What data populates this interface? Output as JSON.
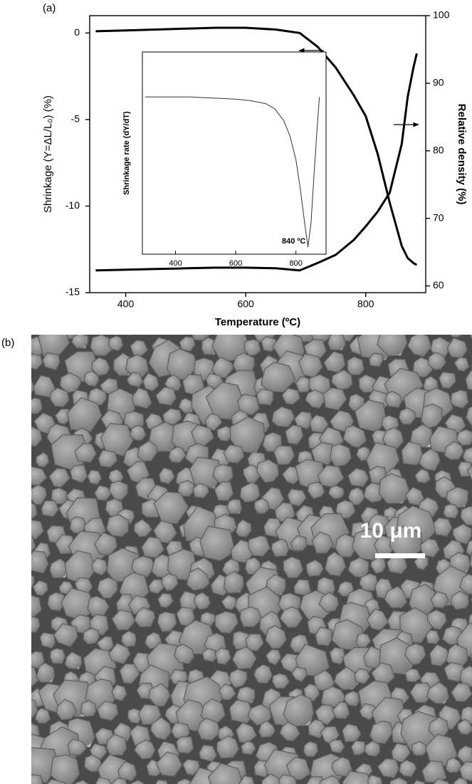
{
  "chart_data": [
    {
      "type": "line",
      "panel_label": "(a)",
      "xlabel": "Temperature (ºC)",
      "ylabel": "Shrinkage (Y=ΔL/L₀) (%)",
      "y2label": "Relative density (%)",
      "x": [
        350,
        400,
        450,
        500,
        550,
        600,
        650,
        690,
        720,
        750,
        780,
        800,
        820,
        840,
        860,
        870,
        880,
        885
      ],
      "xlim": [
        340,
        900
      ],
      "xticks": [
        400,
        600,
        800
      ],
      "ylim": [
        -15,
        1
      ],
      "yticks": [
        -15,
        -10,
        -5,
        0
      ],
      "y2lim": [
        59,
        100
      ],
      "y2ticks": [
        60,
        70,
        80,
        90,
        100
      ],
      "series": [
        {
          "color": "#000000",
          "values": [
            0.1,
            0.15,
            0.2,
            0.25,
            0.3,
            0.3,
            0.2,
            0,
            -0.8,
            -2,
            -3.6,
            -4.8,
            -7,
            -9.8,
            -12.3,
            -13,
            -13.3,
            -13.4
          ]
        },
        {
          "color": "#000000",
          "axis": "y2",
          "values": [
            62.3,
            62.4,
            62.5,
            62.6,
            62.7,
            62.7,
            62.6,
            62.3,
            63.4,
            64.6,
            66.8,
            68.8,
            71,
            73.8,
            81,
            88,
            92.5,
            94.4
          ]
        }
      ]
    },
    {
      "type": "line",
      "ylabel": "Shrinkage rate (dY/dT)",
      "annotation": "840 ºC",
      "x": [
        300,
        350,
        400,
        450,
        500,
        550,
        600,
        650,
        700,
        730,
        760,
        780,
        800,
        815,
        830,
        840,
        850,
        860,
        870,
        878
      ],
      "xlim": [
        290,
        900
      ],
      "xticks": [
        400,
        600,
        800
      ],
      "ylim": [
        -10.5,
        3
      ],
      "series": [
        {
          "color": "#333333",
          "values": [
            0,
            0,
            0,
            0,
            -0.05,
            -0.1,
            -0.15,
            -0.25,
            -0.45,
            -0.8,
            -1.6,
            -2.6,
            -4.2,
            -6.2,
            -8.6,
            -10,
            -8.4,
            -5.2,
            -2.2,
            0
          ]
        }
      ]
    }
  ],
  "figure_b": {
    "panel_label": "(b)",
    "scale_bar_label": "10 μm"
  }
}
